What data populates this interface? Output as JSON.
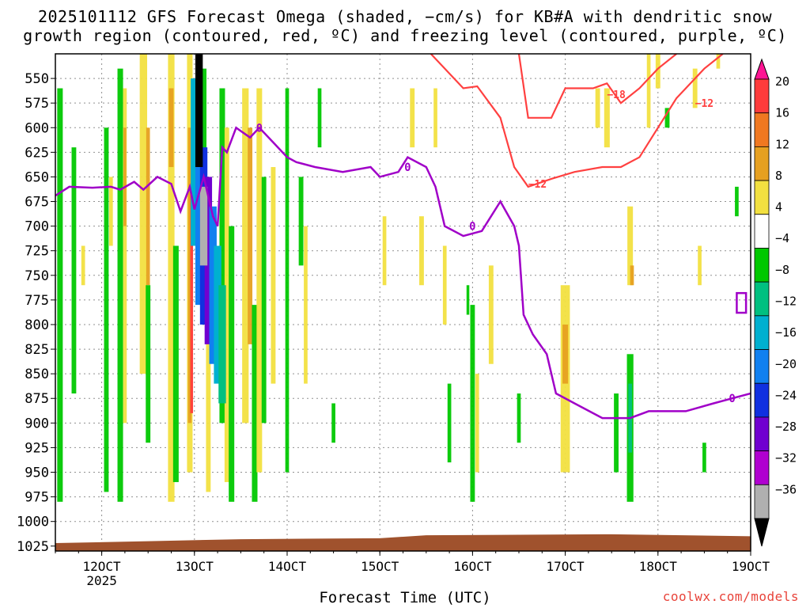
{
  "header": {
    "title_line1": "2025101112 GFS Forecast Omega (shaded, −cm/s) for KB#A with dendritic snow",
    "title_line2": "growth region (contoured, red, ºC) and freezing level (contoured, purple, ºC)"
  },
  "footer": {
    "xlabel": "Forecast Time (UTC)",
    "credit": "coolwx.com/models"
  },
  "chart_data": {
    "type": "heatmap",
    "title": "2025101112 GFS Forecast Omega (shaded, −cm/s) for KB#A with dendritic snow growth region (contoured, red, ºC) and freezing level (contoured, purple, ºC)",
    "xlabel": "Forecast Time (UTC)",
    "ylabel": "",
    "x_ticks": [
      "12OCT",
      "13OCT",
      "14OCT",
      "15OCT",
      "16OCT",
      "17OCT",
      "18OCT",
      "19OCT"
    ],
    "x_sublabel": "2025",
    "x_range_days": [
      11.5,
      19.0
    ],
    "y_ticks": [
      550,
      575,
      600,
      625,
      650,
      675,
      700,
      725,
      750,
      775,
      800,
      825,
      850,
      875,
      900,
      925,
      950,
      975,
      1000,
      1025
    ],
    "y_range_hpa": [
      525,
      1030
    ],
    "y_scale": "reverse",
    "grid": true,
    "colorbar": {
      "labels": [
        "20",
        "16",
        "12",
        "8",
        "4",
        "−4",
        "−8",
        "−12",
        "−16",
        "−20",
        "−24",
        "−28",
        "−32",
        "−36"
      ],
      "colors": [
        "#ff1493",
        "#ff3b3b",
        "#f07820",
        "#e6a020",
        "#f2e040",
        "#ffffff",
        "#00c800",
        "#00c080",
        "#00b0d0",
        "#1080f0",
        "#1030e0",
        "#7000d0",
        "#b000d0",
        "#b0b0b0",
        "#000000"
      ]
    },
    "freezing_level": {
      "label": "0",
      "color": "#a000c8",
      "points": [
        [
          11.5,
          669
        ],
        [
          11.65,
          660
        ],
        [
          11.9,
          661
        ],
        [
          12.1,
          660
        ],
        [
          12.2,
          663
        ],
        [
          12.35,
          655
        ],
        [
          12.45,
          663
        ],
        [
          12.6,
          650
        ],
        [
          12.75,
          657
        ],
        [
          12.85,
          685
        ],
        [
          12.95,
          660
        ],
        [
          13.0,
          683
        ],
        [
          13.1,
          650
        ],
        [
          13.2,
          690
        ],
        [
          13.25,
          700
        ],
        [
          13.3,
          620
        ],
        [
          13.35,
          625
        ],
        [
          13.45,
          600
        ],
        [
          13.6,
          610
        ],
        [
          13.7,
          600
        ],
        [
          13.85,
          615
        ],
        [
          14.0,
          630
        ],
        [
          14.1,
          635
        ],
        [
          14.3,
          640
        ],
        [
          14.6,
          645
        ],
        [
          14.9,
          640
        ],
        [
          15.0,
          650
        ],
        [
          15.2,
          645
        ],
        [
          15.3,
          630
        ],
        [
          15.5,
          640
        ],
        [
          15.6,
          660
        ],
        [
          15.7,
          700
        ],
        [
          15.9,
          710
        ],
        [
          16.1,
          705
        ],
        [
          16.3,
          675
        ],
        [
          16.45,
          700
        ],
        [
          16.5,
          720
        ],
        [
          16.55,
          790
        ],
        [
          16.65,
          810
        ],
        [
          16.8,
          830
        ],
        [
          16.9,
          870
        ],
        [
          17.1,
          880
        ],
        [
          17.4,
          895
        ],
        [
          17.7,
          895
        ],
        [
          17.9,
          888
        ],
        [
          18.3,
          888
        ],
        [
          18.6,
          880
        ],
        [
          18.8,
          875
        ],
        [
          19.0,
          870
        ]
      ],
      "points_note": "",
      "closed_contour_label": "0"
    },
    "dgz_contours": [
      {
        "label": "−12",
        "color": "#ff4040"
      },
      {
        "label": "−18",
        "color": "#ff4040"
      }
    ],
    "terrain_color": "#a0522d"
  }
}
